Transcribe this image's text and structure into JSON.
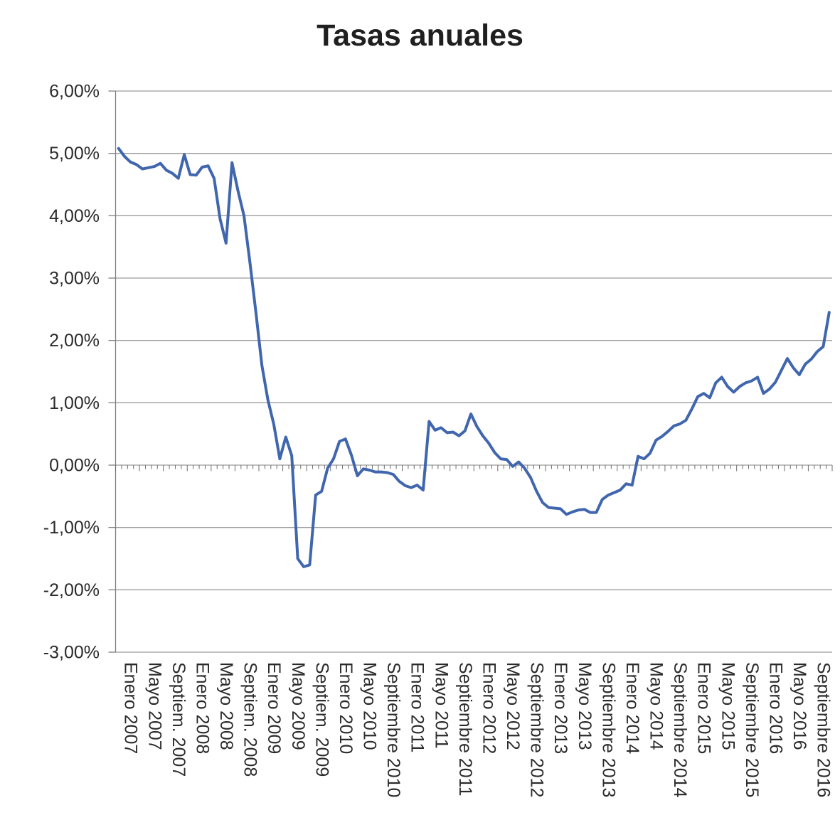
{
  "chart_data": {
    "type": "line",
    "title": "Tasas anuales",
    "xlabel": "",
    "ylabel": "",
    "ylim": [
      -3,
      6
    ],
    "y_tick_step": 1,
    "grid": "horizontal",
    "legend": "none",
    "y_tick_labels": [
      "6,00%",
      "5,00%",
      "4,00%",
      "3,00%",
      "2,00%",
      "1,00%",
      "0,00%",
      "-1,00%",
      "-2,00%",
      "-3,00%"
    ],
    "tick_every": 4,
    "x_tick_labels": [
      "Enero 2007",
      "Mayo 2007",
      "Septiem. 2007",
      "Enero 2008",
      "Mayo 2008",
      "Septiem. 2008",
      "Enero 2009",
      "Mayo 2009",
      "Septiem. 2009",
      "Enero 2010",
      "Mayo 2010",
      "Septiembre 2010",
      "Enero 2011",
      "Mayo 2011",
      "Septiembre 2011",
      "Enero 2012",
      "Mayo 2012",
      "Septiembre 2012",
      "Enero 2013",
      "Mayo 2013",
      "Septiembre 2013",
      "Enero 2014",
      "Mayo 2014",
      "Septiembre 2014",
      "Enero 2015",
      "Mayo 2015",
      "Septiembre 2015",
      "Enero 2016",
      "Mayo 2016",
      "Septiembre 2016"
    ],
    "x_start": "Enero 2007",
    "x_end": "Diciembre 2016",
    "values": [
      5.08,
      4.95,
      4.86,
      4.82,
      4.75,
      4.77,
      4.79,
      4.84,
      4.73,
      4.68,
      4.6,
      4.98,
      4.66,
      4.65,
      4.78,
      4.8,
      4.6,
      3.95,
      3.56,
      4.85,
      4.4,
      4.0,
      3.25,
      2.45,
      1.6,
      1.05,
      0.65,
      0.1,
      0.45,
      0.15,
      -1.5,
      -1.63,
      -1.6,
      -0.48,
      -0.42,
      -0.05,
      0.1,
      0.38,
      0.42,
      0.16,
      -0.17,
      -0.06,
      -0.08,
      -0.11,
      -0.11,
      -0.12,
      -0.15,
      -0.26,
      -0.33,
      -0.36,
      -0.32,
      -0.4,
      0.7,
      0.56,
      0.6,
      0.52,
      0.53,
      0.47,
      0.55,
      0.82,
      0.62,
      0.47,
      0.35,
      0.2,
      0.1,
      0.09,
      -0.02,
      0.05,
      -0.05,
      -0.2,
      -0.42,
      -0.6,
      -0.68,
      -0.69,
      -0.7,
      -0.79,
      -0.75,
      -0.72,
      -0.71,
      -0.76,
      -0.76,
      -0.55,
      -0.48,
      -0.44,
      -0.4,
      -0.3,
      -0.32,
      0.14,
      0.1,
      0.19,
      0.4,
      0.46,
      0.54,
      0.63,
      0.66,
      0.72,
      0.9,
      1.1,
      1.15,
      1.08,
      1.32,
      1.41,
      1.26,
      1.17,
      1.26,
      1.32,
      1.35,
      1.41,
      1.15,
      1.22,
      1.33,
      1.52,
      1.71,
      1.56,
      1.45,
      1.62,
      1.7,
      1.82,
      1.9,
      2.45
    ],
    "colors": {
      "line": "#4066ae",
      "grid": "#9c9c9c",
      "axis": "#808080",
      "tick": "#6e6e6e",
      "text": "#2b2b2b",
      "title": "#1f1f1f",
      "background": "#ffffff"
    }
  }
}
